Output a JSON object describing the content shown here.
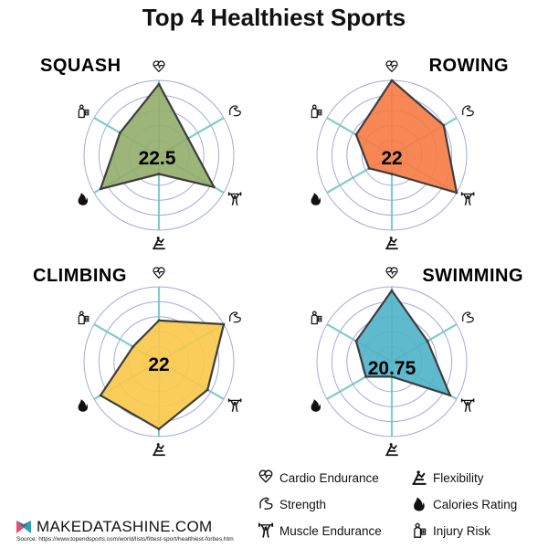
{
  "title": "Top 4 Healthiest Sports",
  "chart_data": {
    "type": "radar",
    "axes": [
      "Cardio Endurance",
      "Strength",
      "Muscle Endurance",
      "Flexibility",
      "Calories Rating",
      "Injury Risk"
    ],
    "scale_max": 10,
    "rings": 5,
    "charts": [
      {
        "name": "SQUASH",
        "score": "22.5",
        "values": [
          9.5,
          4.5,
          8.5,
          2.5,
          9.0,
          6.0
        ],
        "color": "#93ad6c"
      },
      {
        "name": "ROWING",
        "score": "22",
        "values": [
          10.0,
          8.0,
          10.0,
          2.5,
          3.5,
          5.5
        ],
        "color": "#f77a44"
      },
      {
        "name": "CLIMBING",
        "score": "22",
        "values": [
          5.5,
          10.0,
          7.5,
          9.0,
          9.0,
          4.0
        ],
        "color": "#fac849"
      },
      {
        "name": "SWIMMING",
        "score": "20.75",
        "values": [
          9.5,
          5.5,
          9.0,
          2.0,
          4.0,
          5.5
        ],
        "color": "#4fb2c8"
      }
    ]
  },
  "legend": [
    {
      "label": "Cardio Endurance",
      "icon": "heart-pulse-icon"
    },
    {
      "label": "Flexibility",
      "icon": "yoga-pose-icon"
    },
    {
      "label": "Strength",
      "icon": "flexed-arm-icon"
    },
    {
      "label": "Calories Rating",
      "icon": "flame-icon"
    },
    {
      "label": "Muscle Endurance",
      "icon": "weightlifter-icon"
    },
    {
      "label": "Injury Risk",
      "icon": "injured-person-icon"
    }
  ],
  "brand": "MAKEDATASHINE.COM",
  "source": "Source: https://www.topendsports.com/world/lists/fittest-sport/healthiest-forbes.htm"
}
